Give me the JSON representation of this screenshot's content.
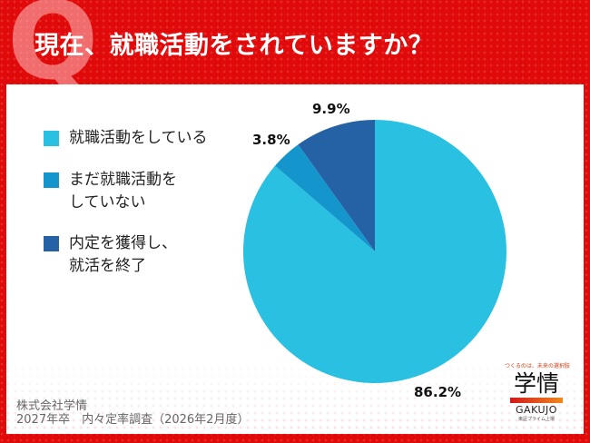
{
  "header": {
    "q_mark": "Q",
    "title": "現在、就職活動をされていますか？"
  },
  "legend": [
    {
      "label": "就職活動をしている",
      "color": "#29c0e2"
    },
    {
      "label": "まだ就職活動を\nしていない",
      "color": "#1496cc"
    },
    {
      "label": "内定を獲得し、\n就活を終了",
      "color": "#2461a5"
    }
  ],
  "labels": {
    "slice1": "86.2%",
    "slice2": "3.8%",
    "slice3": "9.9%"
  },
  "source": {
    "line1": "株式会社学情",
    "line2": "2027年卒　内々定率調査（2026年2月度）",
    "text": "株式会社学情\n2027年卒　内々定率調査（2026年2月度）"
  },
  "logo": {
    "tagline": "つくるのは、未来の選択肢",
    "name": "学情",
    "name_en": "GAKUJO",
    "sub": "東証プライム上場"
  },
  "colors": {
    "frame": "#e10a0a",
    "slice1": "#29c0e2",
    "slice2": "#1496cc",
    "slice3": "#2461a5"
  },
  "chart_data": {
    "type": "pie",
    "title": "現在、就職活動をされていますか？",
    "categories": [
      "就職活動をしている",
      "まだ就職活動をしていない",
      "内定を獲得し、就活を終了"
    ],
    "values": [
      86.2,
      3.8,
      9.9
    ],
    "colors": [
      "#29c0e2",
      "#1496cc",
      "#2461a5"
    ],
    "start_angle": "12 o'clock, clockwise",
    "legend_position": "left",
    "unit": "%"
  }
}
